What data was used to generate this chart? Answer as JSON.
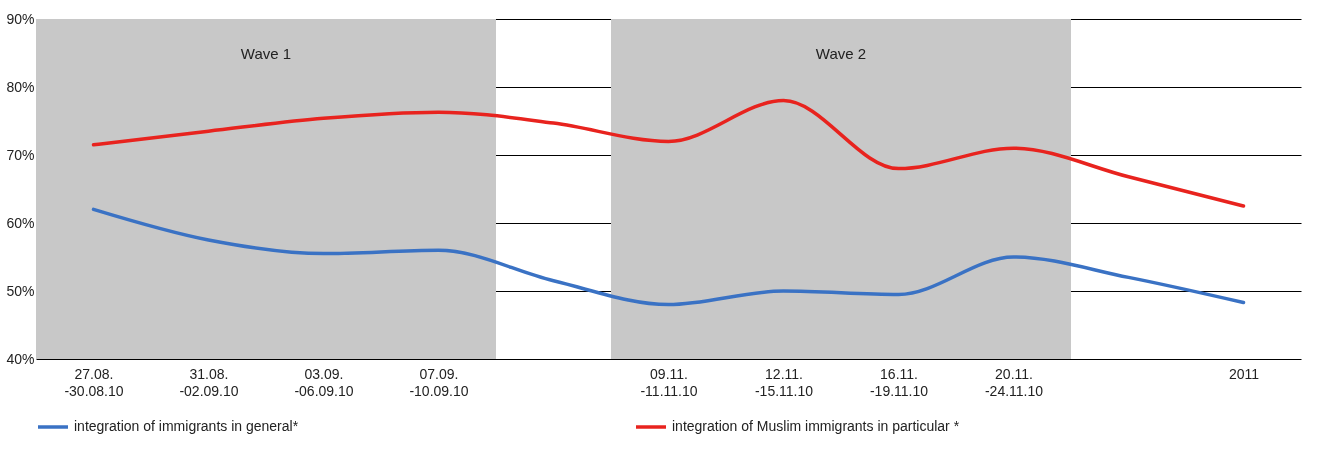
{
  "chart_data": {
    "type": "line",
    "categories": [
      "27.08.\n-30.08.10",
      "31.08.\n-02.09.10",
      "03.09.\n-06.09.10",
      "07.09.\n-10.09.10",
      null,
      "09.11.\n-11.11.10",
      "12.11.\n-15.11.10",
      "16.11.\n-19.11.10",
      "20.11.\n-24.11.10",
      null,
      "2011"
    ],
    "series": [
      {
        "name": "integration of immigrants in general*",
        "color": "#3a72c4",
        "values": [
          62,
          57.5,
          55.5,
          56,
          51.5,
          48,
          50,
          49.5,
          55,
          52,
          48.3
        ]
      },
      {
        "name": "integration of Muslim immigrants in particular *",
        "color": "#e8231e",
        "values": [
          71.5,
          73.5,
          75.4,
          76.3,
          74.7,
          72,
          78,
          68,
          71,
          66.8,
          62.5
        ]
      }
    ],
    "ylim": [
      40,
      90
    ],
    "yticks": [
      {
        "value": 40,
        "label": "40%"
      },
      {
        "value": 50,
        "label": "50%"
      },
      {
        "value": 60,
        "label": "60%"
      },
      {
        "value": 70,
        "label": "70%"
      },
      {
        "value": 80,
        "label": "80%"
      },
      {
        "value": 90,
        "label": "90%"
      }
    ],
    "bands": [
      {
        "axis": "x",
        "from": "27.08.\n-30.08.10",
        "to": "07.09.\n-10.09.10",
        "label": "Wave 1",
        "color": "#c8c8c8"
      },
      {
        "axis": "x",
        "from": "09.11.\n-11.11.10",
        "to": "20.11.\n-24.11.10",
        "label": "Wave 2",
        "color": "#c8c8c8"
      }
    ],
    "grid": "y",
    "legend": "bottom",
    "marker": "none",
    "line_style": "solid"
  }
}
